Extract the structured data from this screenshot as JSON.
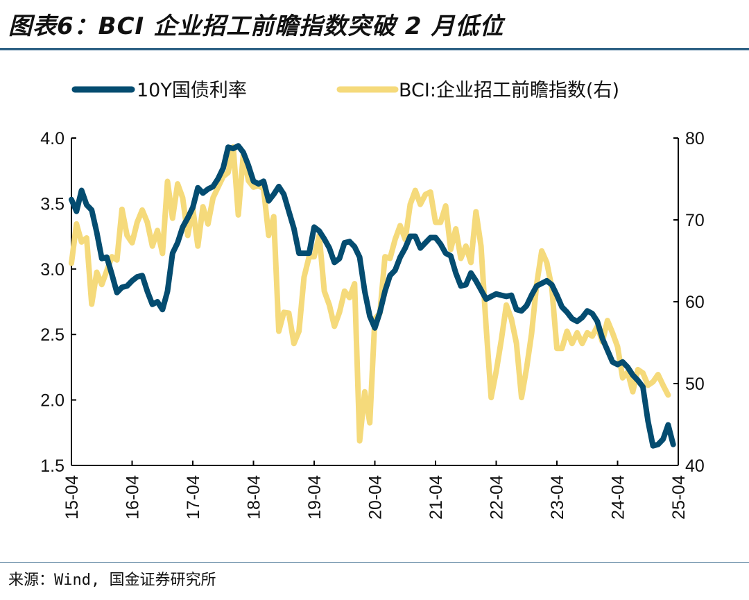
{
  "title": "图表6：BCI 企业招工前瞻指数突破 2 月低位",
  "source": "来源：Wind, 国金证券研究所",
  "colors": {
    "bond_yield": "#044c70",
    "bci": "#f5da7b",
    "rule": "#2f6285"
  },
  "chart_data": {
    "type": "line",
    "title": "BCI 企业招工前瞻指数突破 2 月低位",
    "xlabel": "",
    "ylabel_left": "10Y国债利率 (%)",
    "ylabel_right": "BCI:企业招工前瞻指数",
    "x_start": "2015-04",
    "x_frequency": "monthly",
    "x_ticks": [
      "15-04",
      "16-04",
      "17-04",
      "18-04",
      "19-04",
      "20-04",
      "21-04",
      "22-04",
      "23-04",
      "24-04",
      "25-04"
    ],
    "ylim_left": [
      1.5,
      4.0
    ],
    "yticks_left": [
      "1.5",
      "2.0",
      "2.5",
      "3.0",
      "3.5",
      "4.0"
    ],
    "ylim_right": [
      40,
      80
    ],
    "yticks_right": [
      "40",
      "50",
      "60",
      "70",
      "80"
    ],
    "grid": false,
    "legend_position": "top",
    "series": [
      {
        "name": "10Y国债利率",
        "axis": "left",
        "values": [
          3.53,
          3.44,
          3.6,
          3.49,
          3.45,
          3.28,
          3.08,
          3.09,
          2.96,
          2.82,
          2.86,
          2.87,
          2.91,
          2.94,
          2.95,
          2.83,
          2.73,
          2.75,
          2.69,
          2.83,
          3.12,
          3.2,
          3.32,
          3.39,
          3.47,
          3.62,
          3.58,
          3.61,
          3.63,
          3.69,
          3.77,
          3.93,
          3.92,
          3.94,
          3.89,
          3.79,
          3.67,
          3.65,
          3.67,
          3.52,
          3.57,
          3.63,
          3.57,
          3.44,
          3.31,
          3.12,
          3.12,
          3.12,
          3.32,
          3.29,
          3.23,
          3.16,
          3.05,
          3.08,
          3.2,
          3.21,
          3.17,
          3.09,
          2.83,
          2.64,
          2.55,
          2.67,
          2.83,
          2.95,
          2.99,
          3.09,
          3.16,
          3.25,
          3.25,
          3.16,
          3.2,
          3.24,
          3.24,
          3.19,
          3.12,
          3.1,
          2.97,
          2.87,
          2.88,
          2.97,
          2.91,
          2.84,
          2.77,
          2.79,
          2.81,
          2.8,
          2.79,
          2.8,
          2.69,
          2.68,
          2.72,
          2.8,
          2.87,
          2.89,
          2.91,
          2.88,
          2.8,
          2.71,
          2.67,
          2.62,
          2.6,
          2.63,
          2.68,
          2.66,
          2.6,
          2.47,
          2.38,
          2.29,
          2.27,
          2.29,
          2.25,
          2.19,
          2.15,
          2.1,
          1.84,
          1.65,
          1.66,
          1.7,
          1.81,
          1.66
        ]
      },
      {
        "name": "BCI:企业招工前瞻指数(右)",
        "axis": "right",
        "values": [
          64.7,
          69.5,
          67.3,
          67.8,
          59.7,
          63.6,
          62.1,
          63.8,
          65.5,
          65.1,
          71.3,
          68.1,
          67.2,
          69.7,
          71.2,
          69.7,
          66.8,
          68.7,
          65.9,
          74.7,
          70.2,
          74.4,
          72.7,
          68.1,
          71.4,
          66.8,
          71.6,
          69.5,
          72.7,
          74.0,
          75.3,
          75.8,
          78.9,
          70.6,
          78.1,
          74.8,
          74.0,
          74.2,
          73.8,
          68.1,
          70.4,
          56.4,
          58.7,
          58.6,
          54.9,
          56.4,
          63.0,
          65.5,
          65.5,
          68.1,
          61.3,
          59.6,
          57.0,
          58.7,
          61.3,
          60.5,
          62.2,
          43.0,
          49.0,
          45.2,
          57.9,
          58.6,
          65.5,
          65.3,
          67.6,
          69.3,
          67.6,
          71.9,
          73.6,
          71.9,
          73.1,
          73.4,
          69.7,
          69.7,
          71.7,
          66.4,
          68.9,
          65.3,
          66.8,
          64.8,
          71.0,
          66.8,
          57.0,
          48.3,
          51.5,
          55.3,
          59.6,
          57.9,
          54.9,
          48.3,
          51.9,
          56.1,
          62.1,
          66.2,
          64.8,
          61.7,
          54.3,
          54.3,
          56.4,
          54.9,
          56.2,
          54.9,
          56.2,
          55.8,
          57.0,
          55.1,
          57.7,
          56.2,
          54.5,
          50.7,
          51.4,
          49.0,
          51.7,
          51.3,
          49.8,
          50.2,
          51.1,
          49.8,
          48.6
        ]
      }
    ]
  }
}
